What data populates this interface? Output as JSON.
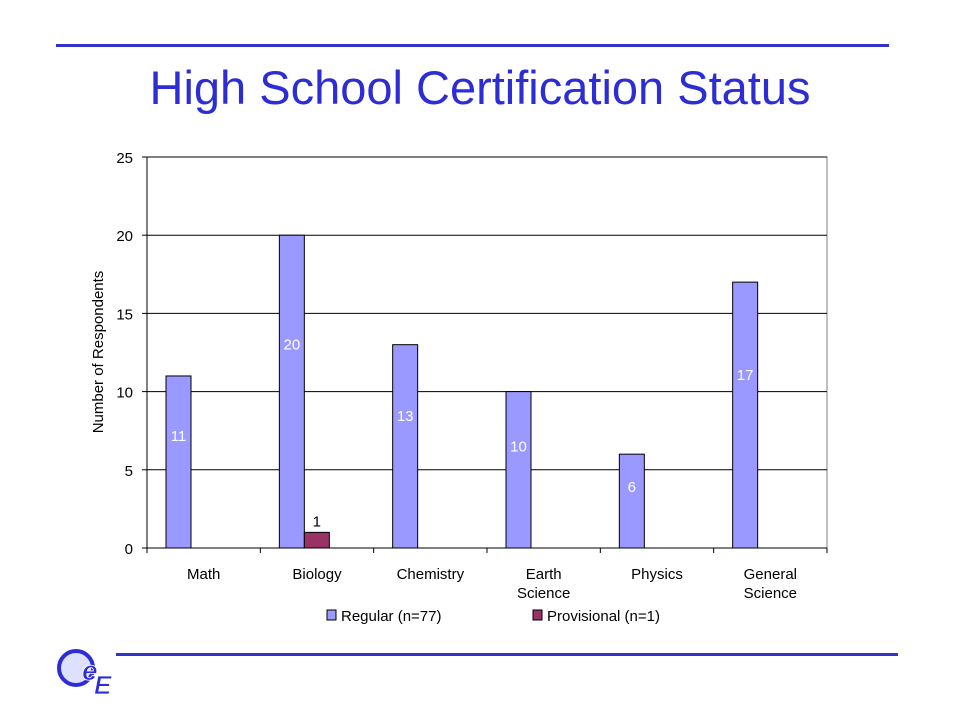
{
  "slide": {
    "title": "High School Certification Status",
    "accent_color": "#3333cc",
    "logo_icon": "school-logo-icon"
  },
  "chart_data": {
    "type": "bar",
    "title": "",
    "xlabel": "",
    "ylabel": "Number of Respondents",
    "ylim": [
      0,
      25
    ],
    "yticks": [
      0,
      5,
      10,
      15,
      20,
      25
    ],
    "grid": true,
    "legend_position": "bottom",
    "categories": [
      [
        "Math"
      ],
      [
        "Biology"
      ],
      [
        "Chemistry"
      ],
      [
        "Earth",
        "Science"
      ],
      [
        "Physics"
      ],
      [
        "General",
        "Science"
      ]
    ],
    "series": [
      {
        "name": "Regular (n=77)",
        "color": "#9999ff",
        "values": [
          11,
          20,
          13,
          10,
          6,
          17
        ],
        "labels": [
          "11",
          "20",
          "13",
          "10",
          "6",
          "17"
        ]
      },
      {
        "name": "Provisional (n=1)",
        "color": "#993366",
        "values": [
          0,
          1,
          0,
          0,
          0,
          0
        ],
        "labels": [
          "",
          "1",
          "",
          "",
          "",
          ""
        ]
      }
    ]
  }
}
